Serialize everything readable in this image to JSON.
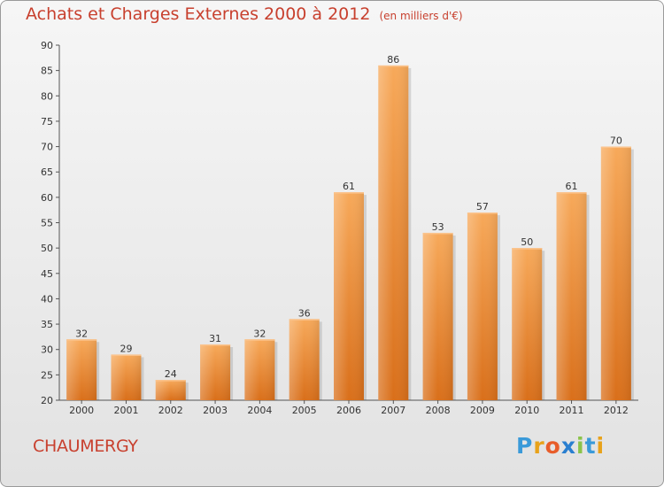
{
  "chart_data": {
    "type": "bar",
    "title": "Achats et Charges Externes 2000 à 2012",
    "subtitle": "(en milliers d'€)",
    "categories": [
      "2000",
      "2001",
      "2002",
      "2003",
      "2004",
      "2005",
      "2006",
      "2007",
      "2008",
      "2009",
      "2010",
      "2011",
      "2012"
    ],
    "values": [
      32,
      29,
      24,
      31,
      32,
      36,
      61,
      86,
      53,
      57,
      50,
      61,
      70
    ],
    "ylim": [
      20,
      90
    ],
    "yticks": [
      20,
      25,
      30,
      35,
      40,
      45,
      50,
      55,
      60,
      65,
      70,
      75,
      80,
      85,
      90
    ],
    "xlabel": "",
    "ylabel": "",
    "grid": false,
    "bar_color": "#f0913d"
  },
  "place_name": "CHAUMERGY",
  "brand": {
    "letters": [
      "P",
      "r",
      "o",
      "x",
      "i",
      "t",
      "i"
    ],
    "colors": [
      "#3a9ad9",
      "#e8a21a",
      "#e85d2a",
      "#2a7fd0",
      "#8bc34a",
      "#3a9ad9",
      "#e8a21a"
    ]
  }
}
